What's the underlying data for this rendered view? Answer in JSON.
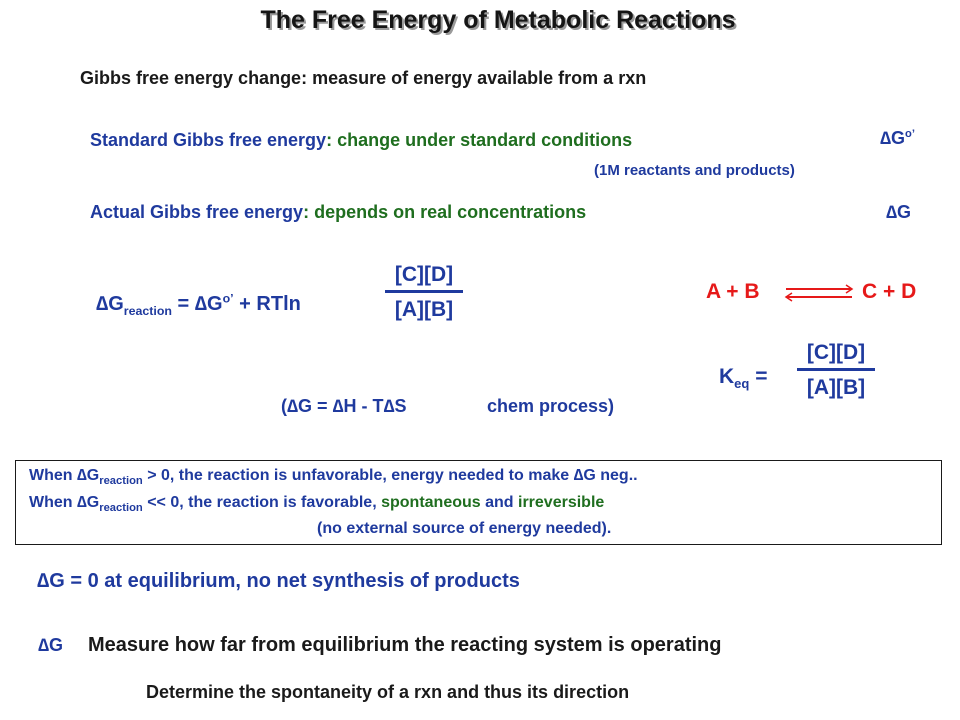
{
  "title": "The Free Energy of Metabolic Reactions",
  "subtitle": "Gibbs free energy change:  measure of energy available from a rxn",
  "standard": {
    "label": "Standard Gibbs free energy",
    "colon": ":",
    "text": "change under standard conditions",
    "symbol": "∆G",
    "symbol_sup": "o’",
    "note": "(1M reactants and products)"
  },
  "actual": {
    "label": "Actual Gibbs free energy",
    "colon": ":",
    "text": "depends on real concentrations",
    "symbol": "∆G"
  },
  "equation": {
    "dg": "∆G",
    "dg_sub": "reaction",
    "equals": " = ",
    "dg0": "∆G",
    "dg0_sup": "o’",
    "term": " + RTln",
    "numerator": "[C][D]",
    "denominator": "[A][B]"
  },
  "reaction": {
    "left": "A + B",
    "right": "C + D",
    "arrow_color": "#e61919"
  },
  "keq": {
    "label": "K",
    "label_sub": "eq",
    "equals": " =",
    "numerator": "[C][D]",
    "denominator": "[A][B]"
  },
  "enthalpy": {
    "open": "(",
    "dg": "∆G",
    "eq": " = ",
    "dh": "∆H",
    "minus": " - T",
    "ds": "∆S",
    "process": "chem process)"
  },
  "box": {
    "line1_a": "When ",
    "line1_dg": "∆G",
    "line1_sub": "reaction",
    "line1_b": " > 0, the reaction is unfavorable, energy needed to make ",
    "line1_dg2": "∆G",
    "line1_c": " neg..",
    "line2_a": "When ",
    "line2_dg": "∆G",
    "line2_sub": "reaction",
    "line2_b": " << 0, the reaction is favorable, ",
    "line2_spont": "spontaneous",
    "line2_and": " and ",
    "line2_irrev": "irreversible",
    "line3": "(no external source of energy needed)."
  },
  "equilibrium": {
    "dg": "∆G",
    "text": " = 0 at equilibrium,  no net synthesis of products"
  },
  "measure": {
    "symbol": "∆G",
    "text": "Measure how far from equilibrium the reacting system is operating"
  },
  "determine": "Determine the spontaneity of a rxn and thus its direction",
  "colors": {
    "blue": "#1f3a9e",
    "green": "#1f6e1f",
    "red": "#e61919",
    "text": "#1a1a1a"
  }
}
